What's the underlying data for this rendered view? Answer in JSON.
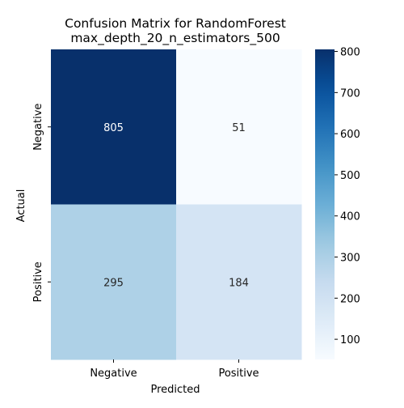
{
  "chart_data": {
    "type": "heatmap",
    "title_lines": [
      "Confusion Matrix for RandomForest",
      "max_depth_20_n_estimators_500"
    ],
    "xlabel": "Predicted",
    "ylabel": "Actual",
    "x_categories": [
      "Negative",
      "Positive"
    ],
    "y_categories": [
      "Negative",
      "Positive"
    ],
    "values": [
      [
        805,
        51
      ],
      [
        295,
        184
      ]
    ],
    "colormap": "Blues",
    "colorbar": {
      "range": [
        51,
        805
      ],
      "ticks": [
        100,
        200,
        300,
        400,
        500,
        600,
        700,
        800
      ]
    },
    "grid": false
  }
}
